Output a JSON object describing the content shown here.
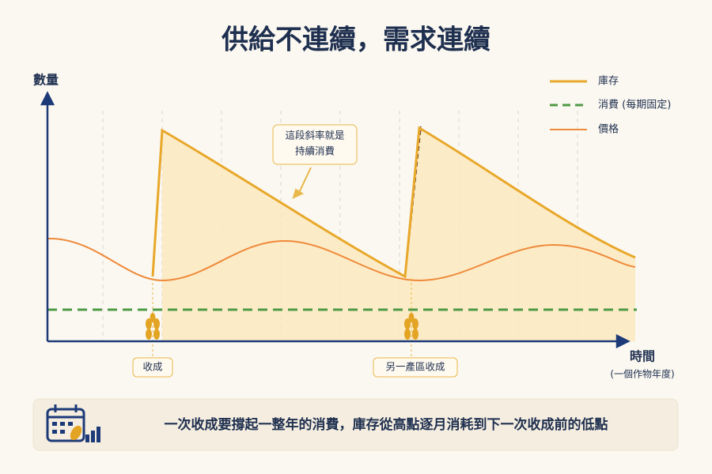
{
  "header": {
    "title": "供給不連續，需求連續"
  },
  "axes": {
    "y_label": "數量",
    "x_label": "時間",
    "x_sublabel": "(一個作物年度)"
  },
  "legend": [
    "庫存",
    "消費 (每期固定)",
    "價格"
  ],
  "callout": [
    "這段斜率就是",
    "持續消費"
  ],
  "harvest_labels": [
    "收成",
    "另一產區收成"
  ],
  "footer": "一次收成要撐起一整年的消費，庫存從高點逐月消耗到下一次收成前的低點"
}
